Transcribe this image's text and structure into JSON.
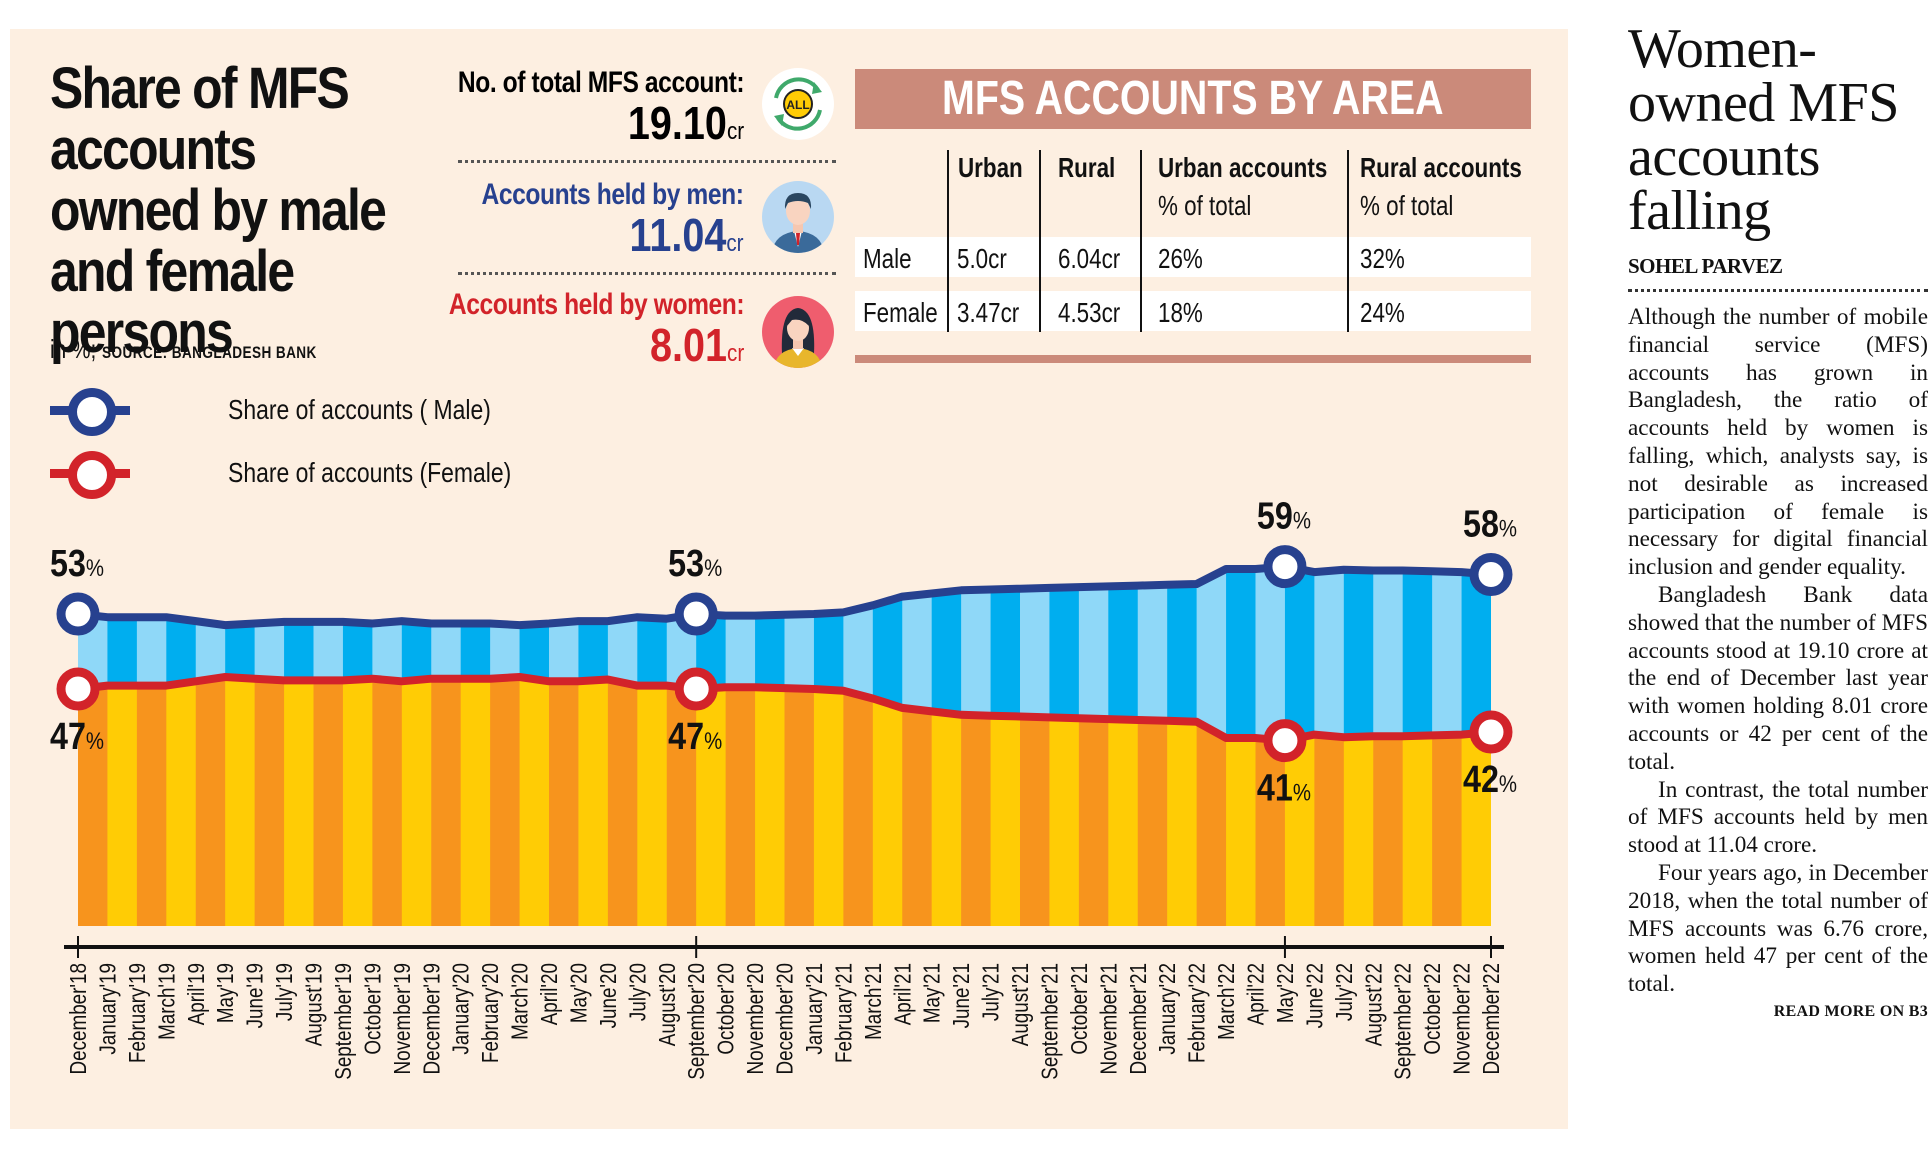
{
  "infographic": {
    "title": "Share of MFS accounts owned by male and female persons",
    "unit_note": "in %;",
    "source": "SOURCE: BANGLADESH BANK",
    "legend": [
      {
        "label": "Share of accounts ( Male)",
        "color": "#27418f"
      },
      {
        "label": "Share of accounts (Female)",
        "color": "#d2232a"
      }
    ],
    "stats": [
      {
        "label": "No. of total MFS account:",
        "value": "19.10",
        "unit": "cr",
        "color": "#111111",
        "icon": "all-accounts-icon"
      },
      {
        "label": "Accounts held by men:",
        "value": "11.04",
        "unit": "cr",
        "color": "#27418f",
        "icon": "man-avatar-icon"
      },
      {
        "label": "Accounts held by women:",
        "value": "8.01",
        "unit": "cr",
        "color": "#d2232a",
        "icon": "woman-avatar-icon"
      }
    ],
    "area_table": {
      "heading": "MFS ACCOUNTS BY AREA",
      "columns": [
        {
          "title": "Urban",
          "sub": ""
        },
        {
          "title": "Rural",
          "sub": ""
        },
        {
          "title": "Urban accounts",
          "sub": "% of total"
        },
        {
          "title": "Rural accounts",
          "sub": "% of total"
        }
      ],
      "rows": [
        {
          "label": "Male",
          "cells": [
            "5.0cr",
            "6.04cr",
            "26%",
            "32%"
          ]
        },
        {
          "label": "Female",
          "cells": [
            "3.47cr",
            "4.53cr",
            "18%",
            "24%"
          ]
        }
      ]
    }
  },
  "chart_data": {
    "type": "area",
    "title": "Share of MFS accounts owned by male and female persons",
    "xlabel": "",
    "ylabel": "in %",
    "ylim": [
      0,
      100
    ],
    "grid": false,
    "legend_position": "top-left",
    "categories": [
      "December'18",
      "January'19",
      "February'19",
      "March'19",
      "April'19",
      "May'19",
      "June'19",
      "July'19",
      "August'19",
      "September'19",
      "October'19",
      "November'19",
      "December'19",
      "January'20",
      "February'20",
      "March'20",
      "April'20",
      "May'20",
      "June'20",
      "July'20",
      "August'20",
      "September'20",
      "October'20",
      "November'20",
      "December'20",
      "January'21",
      "February'21",
      "March'21",
      "April'21",
      "May'21",
      "June'21",
      "July'21",
      "August'21",
      "September'21",
      "October'21",
      "November'21",
      "December'21",
      "January'22",
      "February'22",
      "March'22",
      "April'22",
      "May'22",
      "June'22",
      "July'22",
      "August'22",
      "September'22",
      "October'22",
      "November'22",
      "December'22"
    ],
    "series": [
      {
        "name": "Share of accounts (Male)",
        "color": "#27418f",
        "values": [
          53,
          52.6,
          52.6,
          52.6,
          52.1,
          51.6,
          51.8,
          52,
          52,
          52,
          51.8,
          52.1,
          51.8,
          51.8,
          51.8,
          51.6,
          51.8,
          52.1,
          52.1,
          52.6,
          52.4,
          53,
          52.8,
          52.8,
          52.9,
          53,
          53.2,
          54.1,
          55.2,
          55.6,
          56,
          56.1,
          56.2,
          56.3,
          56.4,
          56.5,
          56.6,
          56.7,
          56.8,
          58.7,
          58.7,
          59,
          58.3,
          58.6,
          58.5,
          58.5,
          58.4,
          58.3,
          58
        ]
      },
      {
        "name": "Share of accounts (Female)",
        "color": "#d2232a",
        "values": [
          47,
          47.4,
          47.4,
          47.4,
          47.9,
          48.4,
          48.2,
          48,
          48,
          48,
          48.2,
          47.9,
          48.2,
          48.2,
          48.2,
          48.4,
          47.9,
          47.9,
          48.1,
          47.4,
          47.4,
          47,
          47.2,
          47.2,
          47.1,
          47,
          46.8,
          45.9,
          44.8,
          44.4,
          44,
          43.9,
          43.8,
          43.7,
          43.6,
          43.5,
          43.4,
          43.3,
          43.2,
          41.3,
          41.3,
          41,
          41.7,
          41.4,
          41.5,
          41.5,
          41.6,
          41.7,
          42
        ]
      }
    ],
    "annotations": [
      {
        "month": "December'18",
        "male": "53",
        "female": "47"
      },
      {
        "month": "September'20",
        "male": "53",
        "female": "47"
      },
      {
        "month": "May'22",
        "male": "59",
        "female": "41"
      },
      {
        "month": "December'22",
        "male": "58",
        "female": "42"
      }
    ],
    "percent_sign": "%",
    "colors": {
      "male_fill_a": "#00aeef",
      "male_fill_b": "#8fd8f8",
      "female_fill_a": "#ffcc05",
      "female_fill_b": "#f7941d"
    }
  },
  "article": {
    "headline": "Women-owned MFS accounts falling",
    "headline_lines": [
      "Women-",
      "owned MFS",
      "accounts",
      "falling"
    ],
    "byline": "SOHEL PARVEZ",
    "paragraphs": [
      "Although the number of mobile financial service (MFS) accounts has grown in Bangladesh, the ratio of accounts held by women is falling, which, analysts say, is not desirable as increased participation of female is necessary for digital financial inclusion and gender equality.",
      "Bangladesh Bank data showed that the number of MFS accounts stood at 19.10 crore at the end of December last year with women holding 8.01 crore accounts or 42 per cent of the total.",
      "In contrast, the total number of MFS accounts held by men stood at 11.04 crore.",
      "Four years ago, in December 2018, when the total number of MFS accounts was 6.76 crore, women held 47 per cent of the total."
    ],
    "read_more": "READ MORE ON B3"
  }
}
